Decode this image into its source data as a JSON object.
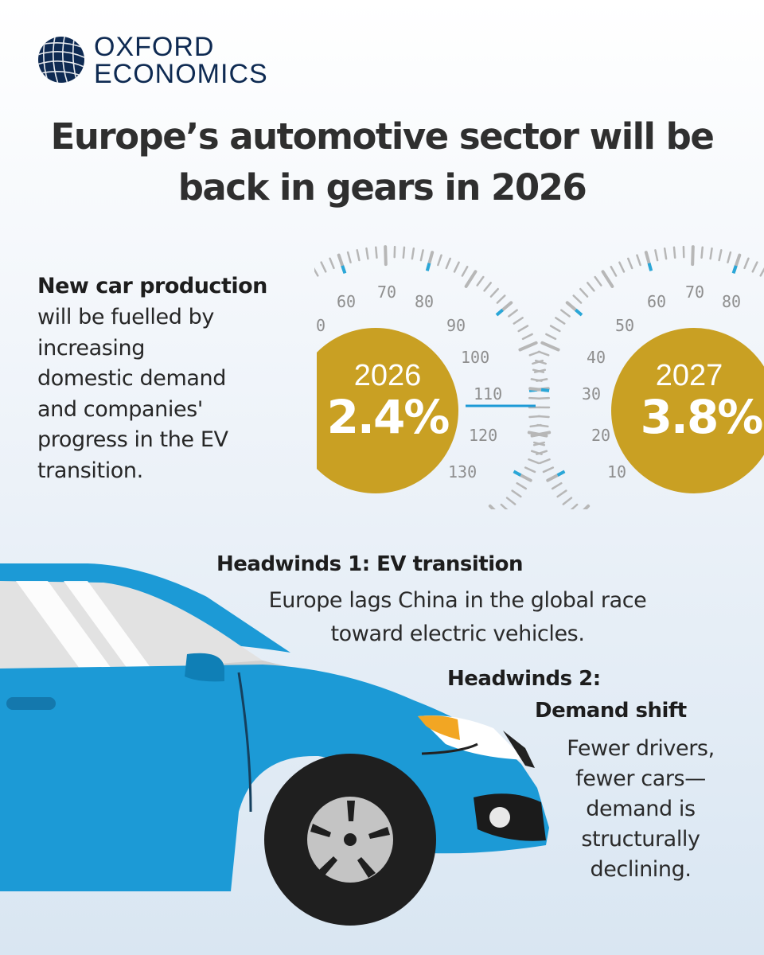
{
  "brand": {
    "line1": "OXFORD",
    "line2": "ECONOMICS",
    "logo_icon": "globe-grid-icon",
    "logo_color": "#0e2a52"
  },
  "title": {
    "line1": "Europe’s automotive sector will be",
    "line2": "back in gears in 2026"
  },
  "intro": {
    "heading": "New car production",
    "lines": [
      "will be fuelled by",
      "increasing",
      "domestic demand",
      "and companies'",
      "progress in the EV",
      "transition."
    ]
  },
  "gauges": [
    {
      "year": "2026",
      "value": "2.4%",
      "scale_labels": [
        "0",
        "60",
        "70",
        "80",
        "90",
        "100",
        "110",
        "120",
        "130"
      ]
    },
    {
      "year": "2027",
      "value": "3.8%",
      "scale_labels": [
        "10",
        "20",
        "30",
        "40",
        "50",
        "60",
        "70",
        "80"
      ]
    }
  ],
  "headwinds": [
    {
      "heading": "Headwinds 1: EV transition",
      "lines": [
        "Europe lags China in the global race",
        "toward electric vehicles."
      ]
    },
    {
      "heading_lines": [
        "Headwinds 2:",
        "Demand shift"
      ],
      "lines": [
        "Fewer drivers,",
        "fewer cars—",
        "demand is",
        "structurally",
        "declining."
      ]
    }
  ],
  "colors": {
    "badge": "#c9a023",
    "car_body": "#1c9ad6",
    "gauge_tick": "#b7b7b7",
    "gauge_accent": "#2aa7d8"
  }
}
